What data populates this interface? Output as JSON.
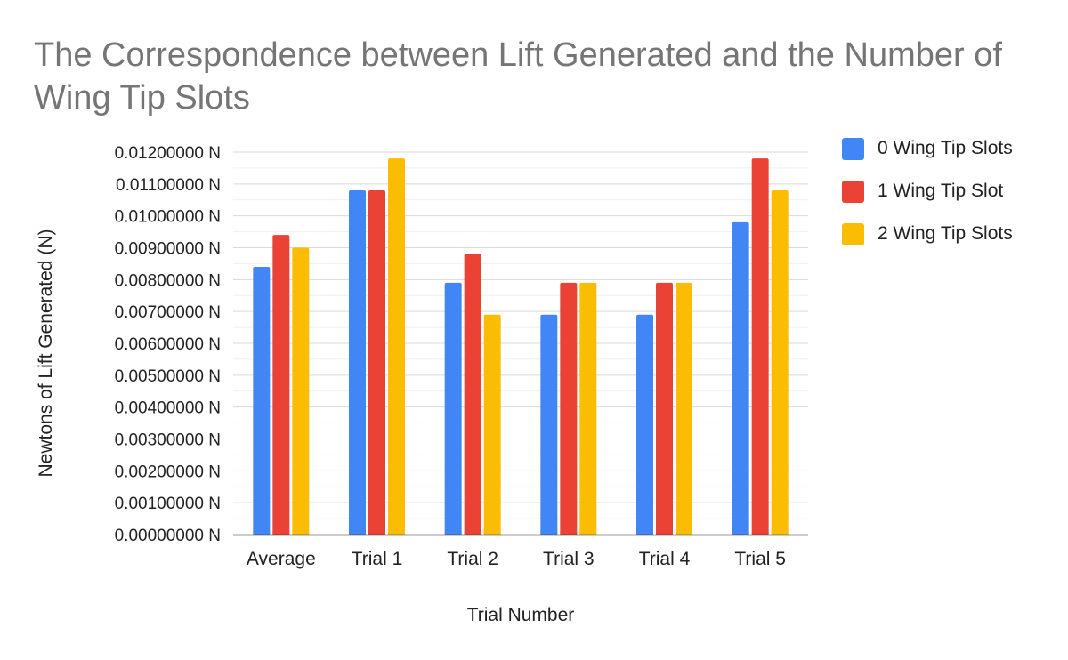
{
  "chart_data": {
    "type": "bar",
    "title": "The Correspondence between Lift Generated and the Number of Wing Tip Slots",
    "xlabel": "Trial Number",
    "ylabel": "Newtons of Lift Generated (N)",
    "categories": [
      "Average",
      "Trial 1",
      "Trial 2",
      "Trial 3",
      "Trial 4",
      "Trial 5"
    ],
    "series": [
      {
        "name": "0 Wing Tip Slots",
        "color": "#4285f4",
        "values": [
          0.0084,
          0.0108,
          0.0079,
          0.0069,
          0.0069,
          0.0098
        ]
      },
      {
        "name": "1 Wing Tip Slot",
        "color": "#ea4335",
        "values": [
          0.0094,
          0.0108,
          0.0088,
          0.0079,
          0.0079,
          0.0118
        ]
      },
      {
        "name": "2 Wing Tip Slots",
        "color": "#fbbc04",
        "values": [
          0.009,
          0.0118,
          0.0069,
          0.0079,
          0.0079,
          0.0108
        ]
      }
    ],
    "ylim": [
      0,
      0.012
    ],
    "yticks": [
      0,
      0.001,
      0.002,
      0.003,
      0.004,
      0.005,
      0.006,
      0.007,
      0.008,
      0.009,
      0.01,
      0.011,
      0.012
    ],
    "ytick_labels": [
      "0.00000000 N",
      "0.00100000 N",
      "0.00200000 N",
      "0.00300000 N",
      "0.00400000 N",
      "0.00500000 N",
      "0.00600000 N",
      "0.00700000 N",
      "0.00800000 N",
      "0.00900000 N",
      "0.01000000 N",
      "0.01100000 N",
      "0.01200000 N"
    ],
    "grid": true,
    "legend_position": "right"
  }
}
